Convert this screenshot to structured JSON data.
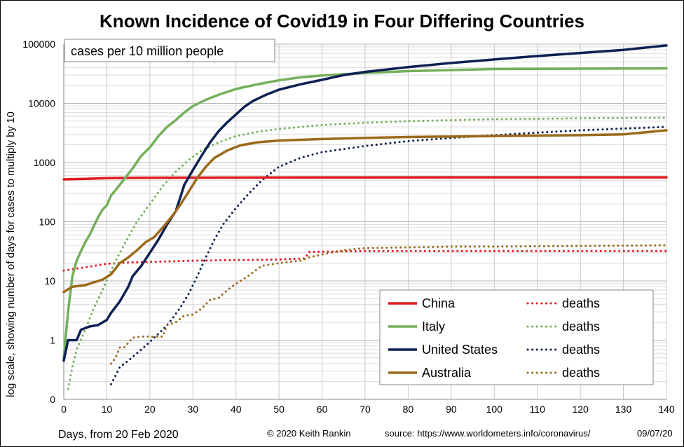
{
  "chart_data": {
    "type": "line",
    "title": "Known Incidence of Covid19 in Four Differing Countries",
    "xlabel": "Days, from 20 Feb 2020",
    "ylabel": "log scale, showing number of days for cases to multiply by 10",
    "y_scale": "log",
    "xlim": [
      0,
      140
    ],
    "ylim": [
      0,
      100000
    ],
    "x_ticks": [
      "0",
      "10",
      "20",
      "30",
      "40",
      "50",
      "60",
      "70",
      "80",
      "90",
      "100",
      "110",
      "120",
      "130",
      "140"
    ],
    "y_ticks": [
      "100000",
      "10000",
      "1000",
      "100",
      "10",
      "1",
      "0"
    ],
    "grid": true,
    "legend_position": "bottom-right",
    "note": "cases per 10 million people",
    "footer": {
      "copyright": "© 2020  Keith Rankin",
      "source": "source:  https://www.worldometers.info/coronavirus/",
      "date": "09/07/20"
    },
    "series": [
      {
        "name": "China",
        "kind": "cases",
        "color": "#e0191e",
        "points": [
          [
            0,
            520
          ],
          [
            5,
            530
          ],
          [
            10,
            545
          ],
          [
            15,
            550
          ],
          [
            20,
            553
          ],
          [
            40,
            556
          ],
          [
            60,
            560
          ],
          [
            100,
            562
          ],
          [
            140,
            563
          ]
        ]
      },
      {
        "name": "Italy",
        "kind": "cases",
        "color": "#73b05a",
        "points": [
          [
            0,
            0.5
          ],
          [
            1,
            3
          ],
          [
            2,
            12
          ],
          [
            3,
            22
          ],
          [
            4,
            32
          ],
          [
            5,
            45
          ],
          [
            6,
            60
          ],
          [
            7,
            85
          ],
          [
            8,
            120
          ],
          [
            9,
            160
          ],
          [
            10,
            190
          ],
          [
            11,
            280
          ],
          [
            12,
            340
          ],
          [
            14,
            520
          ],
          [
            16,
            800
          ],
          [
            18,
            1300
          ],
          [
            20,
            1800
          ],
          [
            22,
            2800
          ],
          [
            24,
            4000
          ],
          [
            26,
            5200
          ],
          [
            28,
            7000
          ],
          [
            30,
            9000
          ],
          [
            33,
            11500
          ],
          [
            36,
            14000
          ],
          [
            40,
            17500
          ],
          [
            45,
            21000
          ],
          [
            50,
            24500
          ],
          [
            55,
            27500
          ],
          [
            60,
            29500
          ],
          [
            70,
            32500
          ],
          [
            80,
            35000
          ],
          [
            90,
            36500
          ],
          [
            100,
            38000
          ],
          [
            120,
            38500
          ],
          [
            140,
            39000
          ]
        ]
      },
      {
        "name": "United States",
        "kind": "cases",
        "color": "#0f2153",
        "points": [
          [
            0,
            0.45
          ],
          [
            1,
            1
          ],
          [
            3,
            1
          ],
          [
            4,
            1.5
          ],
          [
            6,
            1.7
          ],
          [
            8,
            1.8
          ],
          [
            10,
            2.2
          ],
          [
            11,
            2.9
          ],
          [
            13,
            4.5
          ],
          [
            15,
            8
          ],
          [
            16,
            12
          ],
          [
            18,
            18
          ],
          [
            20,
            30
          ],
          [
            22,
            50
          ],
          [
            24,
            90
          ],
          [
            26,
            150
          ],
          [
            27,
            250
          ],
          [
            28,
            420
          ],
          [
            30,
            750
          ],
          [
            32,
            1300
          ],
          [
            34,
            2200
          ],
          [
            36,
            3400
          ],
          [
            38,
            4800
          ],
          [
            40,
            6500
          ],
          [
            42,
            8800
          ],
          [
            44,
            11000
          ],
          [
            47,
            14000
          ],
          [
            50,
            17000
          ],
          [
            55,
            21000
          ],
          [
            60,
            25000
          ],
          [
            65,
            30000
          ],
          [
            70,
            34000
          ],
          [
            80,
            41000
          ],
          [
            90,
            48000
          ],
          [
            100,
            55000
          ],
          [
            110,
            63000
          ],
          [
            120,
            71000
          ],
          [
            130,
            80000
          ],
          [
            140,
            95000
          ]
        ]
      },
      {
        "name": "Australia",
        "kind": "cases",
        "color": "#9b6a1b",
        "points": [
          [
            0,
            6.5
          ],
          [
            2,
            8
          ],
          [
            5,
            8.5
          ],
          [
            7,
            9.5
          ],
          [
            9,
            10.5
          ],
          [
            11,
            13
          ],
          [
            13,
            20
          ],
          [
            15,
            25
          ],
          [
            17,
            33
          ],
          [
            19,
            45
          ],
          [
            21,
            55
          ],
          [
            23,
            80
          ],
          [
            25,
            120
          ],
          [
            27,
            190
          ],
          [
            29,
            320
          ],
          [
            31,
            550
          ],
          [
            33,
            850
          ],
          [
            35,
            1200
          ],
          [
            38,
            1600
          ],
          [
            41,
            1950
          ],
          [
            45,
            2200
          ],
          [
            50,
            2350
          ],
          [
            60,
            2500
          ],
          [
            70,
            2600
          ],
          [
            80,
            2700
          ],
          [
            100,
            2800
          ],
          [
            120,
            2900
          ],
          [
            130,
            3000
          ],
          [
            140,
            3500
          ]
        ]
      },
      {
        "name": "deaths",
        "kind": "deaths",
        "country": "China",
        "color": "#e0191e",
        "points": [
          [
            0,
            15
          ],
          [
            5,
            17
          ],
          [
            10,
            19.5
          ],
          [
            15,
            20.5
          ],
          [
            20,
            21
          ],
          [
            30,
            22
          ],
          [
            40,
            22.5
          ],
          [
            50,
            23
          ],
          [
            56,
            24
          ],
          [
            57,
            31
          ],
          [
            70,
            32
          ],
          [
            100,
            32
          ],
          [
            140,
            32
          ]
        ]
      },
      {
        "name": "deaths",
        "kind": "deaths",
        "country": "Italy",
        "color": "#73b05a",
        "points": [
          [
            1,
            0.15
          ],
          [
            2,
            0.35
          ],
          [
            3,
            0.7
          ],
          [
            5,
            1.5
          ],
          [
            7,
            3.5
          ],
          [
            9,
            7
          ],
          [
            11,
            15
          ],
          [
            13,
            30
          ],
          [
            15,
            55
          ],
          [
            17,
            100
          ],
          [
            20,
            200
          ],
          [
            23,
            400
          ],
          [
            26,
            700
          ],
          [
            29,
            1100
          ],
          [
            32,
            1600
          ],
          [
            36,
            2200
          ],
          [
            40,
            2800
          ],
          [
            45,
            3300
          ],
          [
            50,
            3700
          ],
          [
            60,
            4300
          ],
          [
            70,
            4700
          ],
          [
            80,
            5000
          ],
          [
            100,
            5400
          ],
          [
            120,
            5600
          ],
          [
            140,
            5700
          ]
        ]
      },
      {
        "name": "deaths",
        "kind": "deaths",
        "country": "United States",
        "color": "#0f2153",
        "points": [
          [
            11,
            0.18
          ],
          [
            12,
            0.25
          ],
          [
            13,
            0.35
          ],
          [
            15,
            0.45
          ],
          [
            17,
            0.6
          ],
          [
            19,
            0.8
          ],
          [
            21,
            1.1
          ],
          [
            23,
            1.5
          ],
          [
            25,
            2.2
          ],
          [
            27,
            3.5
          ],
          [
            29,
            6
          ],
          [
            31,
            12
          ],
          [
            33,
            25
          ],
          [
            35,
            50
          ],
          [
            37,
            90
          ],
          [
            40,
            170
          ],
          [
            43,
            300
          ],
          [
            46,
            500
          ],
          [
            50,
            850
          ],
          [
            55,
            1200
          ],
          [
            60,
            1500
          ],
          [
            70,
            1900
          ],
          [
            80,
            2300
          ],
          [
            90,
            2600
          ],
          [
            100,
            2900
          ],
          [
            110,
            3200
          ],
          [
            120,
            3500
          ],
          [
            140,
            4000
          ]
        ]
      },
      {
        "name": "deaths",
        "kind": "deaths",
        "country": "Australia",
        "color": "#9b6a1b",
        "points": [
          [
            11,
            0.4
          ],
          [
            12,
            0.5
          ],
          [
            13,
            0.75
          ],
          [
            14,
            0.75
          ],
          [
            15,
            0.9
          ],
          [
            16,
            1.1
          ],
          [
            18,
            1.15
          ],
          [
            20,
            1.15
          ],
          [
            23,
            1.15
          ],
          [
            24,
            1.8
          ],
          [
            26,
            2.0
          ],
          [
            28,
            2.6
          ],
          [
            30,
            2.7
          ],
          [
            32,
            3.4
          ],
          [
            34,
            4.8
          ],
          [
            36,
            5.2
          ],
          [
            38,
            7
          ],
          [
            40,
            9
          ],
          [
            42,
            11
          ],
          [
            44,
            14
          ],
          [
            46,
            18
          ],
          [
            50,
            20
          ],
          [
            55,
            22
          ],
          [
            57,
            25
          ],
          [
            60,
            28
          ],
          [
            65,
            33
          ],
          [
            70,
            36
          ],
          [
            80,
            37
          ],
          [
            90,
            38
          ],
          [
            100,
            38
          ],
          [
            120,
            39
          ],
          [
            140,
            40
          ]
        ]
      }
    ]
  }
}
